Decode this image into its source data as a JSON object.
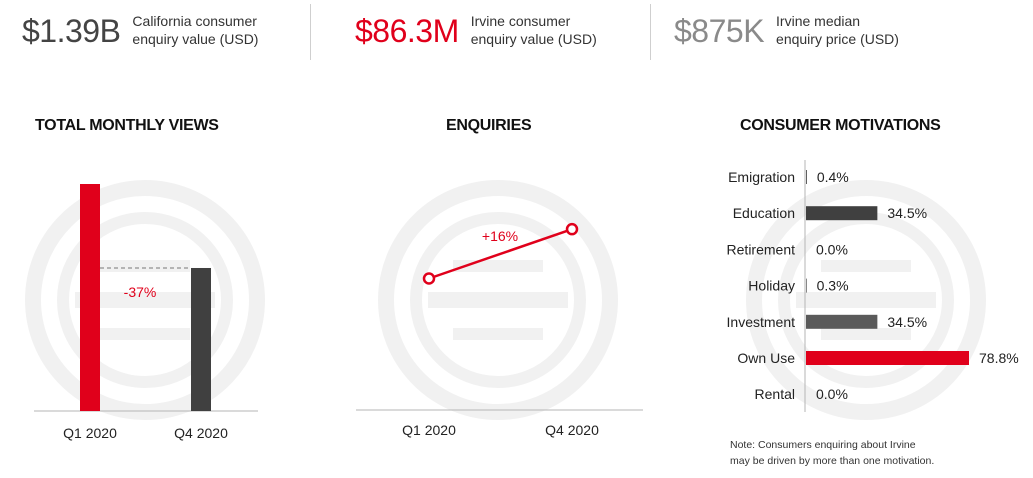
{
  "stats": [
    {
      "value": "$1.39B",
      "label_line1": "California consumer",
      "label_line2": "enquiry value (USD)",
      "color": "#444444"
    },
    {
      "value": "$86.3M",
      "label_line1": "Irvine consumer",
      "label_line2": "enquiry value (USD)",
      "color": "#e0001b"
    },
    {
      "value": "$875K",
      "label_line1": "Irvine median",
      "label_line2": "enquiry price (USD)",
      "color": "#8a8a8a"
    }
  ],
  "colors": {
    "red": "#e0001b",
    "dark": "#404040",
    "mid": "#5a5a5a",
    "axis": "#b5b5b5",
    "watermark": "#f1f1f1"
  },
  "chart_data": [
    {
      "type": "bar",
      "title": "TOTAL MONTHLY VIEWS",
      "categories": [
        "Q1 2020",
        "Q4 2020"
      ],
      "values": [
        100,
        63
      ],
      "colors": [
        "#e0001b",
        "#404040"
      ],
      "annotation": "-37%",
      "ylim": [
        0,
        100
      ]
    },
    {
      "type": "line",
      "title": "ENQUIRIES",
      "categories": [
        "Q1 2020",
        "Q4 2020"
      ],
      "values": [
        100,
        116
      ],
      "annotation": "+16%",
      "ylim": [
        70,
        130
      ]
    },
    {
      "type": "bar",
      "orientation": "horizontal",
      "title": "CONSUMER MOTIVATIONS",
      "categories": [
        "Emigration",
        "Education",
        "Retirement",
        "Holiday",
        "Investment",
        "Own Use",
        "Rental"
      ],
      "values": [
        0.4,
        34.5,
        0.0,
        0.3,
        34.5,
        78.8,
        0.0
      ],
      "labels": [
        "0.4%",
        "34.5%",
        "0.0%",
        "0.3%",
        "34.5%",
        "78.8%",
        "0.0%"
      ],
      "colors": [
        "#404040",
        "#404040",
        "#404040",
        "#404040",
        "#5a5a5a",
        "#e0001b",
        "#404040"
      ],
      "xlim": [
        0,
        78.8
      ]
    }
  ],
  "note": {
    "line1": "Note: Consumers enquiring about Irvine",
    "line2": "may be driven by more than one motivation."
  }
}
